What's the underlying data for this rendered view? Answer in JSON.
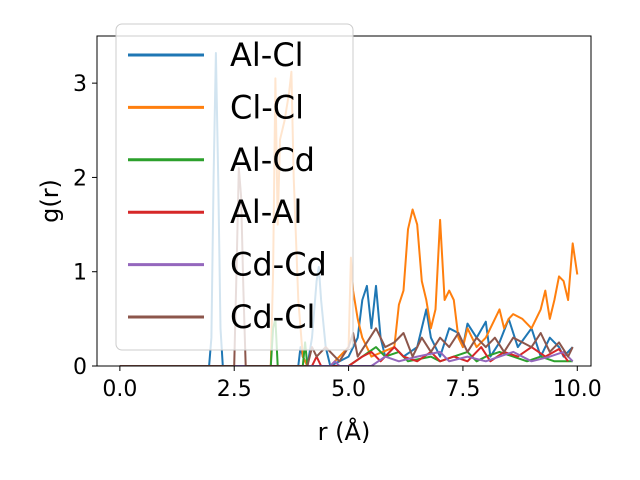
{
  "chart_data": {
    "type": "line",
    "xlabel": "r (Å)",
    "ylabel": "g(r)",
    "xlim": [
      -0.5,
      10.3
    ],
    "ylim": [
      0,
      3.5
    ],
    "xticks": [
      0.0,
      2.5,
      5.0,
      7.5,
      10.0
    ],
    "xtick_labels": [
      "0.0",
      "2.5",
      "5.0",
      "7.5",
      "10.0"
    ],
    "yticks": [
      0,
      1,
      2,
      3
    ],
    "ytick_labels": [
      "0",
      "1",
      "2",
      "3"
    ],
    "grid": false,
    "legend_position": "top-left",
    "series": [
      {
        "name": "Al-Cl",
        "color": "#1f77b4",
        "points": [
          [
            0.0,
            0
          ],
          [
            1.95,
            0
          ],
          [
            2.0,
            0.3
          ],
          [
            2.05,
            2.0
          ],
          [
            2.1,
            3.32
          ],
          [
            2.15,
            2.0
          ],
          [
            2.2,
            0.4
          ],
          [
            2.25,
            0
          ],
          [
            3.9,
            0
          ],
          [
            3.95,
            0.2
          ],
          [
            4.0,
            0.1
          ],
          [
            4.1,
            0
          ],
          [
            4.2,
            0.3
          ],
          [
            4.3,
            0.9
          ],
          [
            4.35,
            1.05
          ],
          [
            4.4,
            0.7
          ],
          [
            4.5,
            0.2
          ],
          [
            4.6,
            0
          ],
          [
            5.0,
            0.1
          ],
          [
            5.2,
            0.3
          ],
          [
            5.3,
            0.7
          ],
          [
            5.4,
            0.85
          ],
          [
            5.5,
            0.4
          ],
          [
            5.6,
            0.85
          ],
          [
            5.7,
            0.3
          ],
          [
            5.8,
            0.1
          ],
          [
            6.0,
            0.2
          ],
          [
            6.2,
            0.1
          ],
          [
            6.5,
            0.2
          ],
          [
            6.7,
            0.6
          ],
          [
            6.8,
            0.3
          ],
          [
            7.0,
            0.1
          ],
          [
            7.2,
            0.4
          ],
          [
            7.4,
            0.35
          ],
          [
            7.5,
            0.2
          ],
          [
            7.6,
            0.45
          ],
          [
            7.8,
            0.3
          ],
          [
            8.0,
            0.47
          ],
          [
            8.1,
            0.1
          ],
          [
            8.3,
            0.25
          ],
          [
            8.5,
            0.5
          ],
          [
            8.7,
            0.2
          ],
          [
            9.0,
            0.4
          ],
          [
            9.2,
            0.1
          ],
          [
            9.4,
            0.3
          ],
          [
            9.6,
            0.2
          ],
          [
            9.7,
            0.1
          ],
          [
            9.9,
            0.2
          ]
        ]
      },
      {
        "name": "Cl-Cl",
        "color": "#ff7f0e",
        "points": [
          [
            0.0,
            0
          ],
          [
            3.3,
            0
          ],
          [
            3.35,
            1.0
          ],
          [
            3.4,
            3.05
          ],
          [
            3.45,
            1.5
          ],
          [
            3.5,
            2.4
          ],
          [
            3.6,
            2.6
          ],
          [
            3.7,
            2.9
          ],
          [
            3.75,
            3.12
          ],
          [
            3.8,
            2.0
          ],
          [
            3.9,
            0.7
          ],
          [
            4.0,
            0.1
          ],
          [
            4.1,
            0
          ],
          [
            4.6,
            0
          ],
          [
            4.8,
            0.1
          ],
          [
            5.0,
            0.2
          ],
          [
            5.05,
            1.15
          ],
          [
            5.1,
            0.8
          ],
          [
            5.2,
            0.5
          ],
          [
            5.3,
            0.3
          ],
          [
            5.5,
            0.1
          ],
          [
            6.0,
            0.2
          ],
          [
            6.1,
            0.65
          ],
          [
            6.2,
            0.8
          ],
          [
            6.3,
            1.45
          ],
          [
            6.4,
            1.66
          ],
          [
            6.5,
            1.5
          ],
          [
            6.6,
            0.9
          ],
          [
            6.7,
            0.7
          ],
          [
            6.8,
            0.4
          ],
          [
            6.9,
            0.6
          ],
          [
            7.0,
            1.55
          ],
          [
            7.1,
            0.7
          ],
          [
            7.2,
            0.8
          ],
          [
            7.3,
            0.7
          ],
          [
            7.4,
            0.3
          ],
          [
            7.5,
            0.2
          ],
          [
            7.6,
            0.4
          ],
          [
            7.8,
            0.2
          ],
          [
            8.0,
            0.3
          ],
          [
            8.2,
            0.5
          ],
          [
            8.3,
            0.6
          ],
          [
            8.4,
            0.4
          ],
          [
            8.5,
            0.5
          ],
          [
            8.6,
            0.55
          ],
          [
            8.8,
            0.5
          ],
          [
            9.0,
            0.4
          ],
          [
            9.2,
            0.6
          ],
          [
            9.3,
            0.8
          ],
          [
            9.4,
            0.5
          ],
          [
            9.5,
            0.7
          ],
          [
            9.6,
            0.95
          ],
          [
            9.7,
            0.9
          ],
          [
            9.8,
            0.7
          ],
          [
            9.9,
            1.3
          ],
          [
            10.0,
            0.97
          ]
        ]
      },
      {
        "name": "Al-Cd",
        "color": "#2ca02c",
        "points": [
          [
            0.0,
            0
          ],
          [
            3.3,
            0
          ],
          [
            3.35,
            0.4
          ],
          [
            3.4,
            0.5
          ],
          [
            3.45,
            0
          ],
          [
            4.0,
            0
          ],
          [
            4.05,
            0.25
          ],
          [
            4.1,
            0
          ],
          [
            5.0,
            0
          ],
          [
            5.3,
            0.1
          ],
          [
            5.6,
            0.2
          ],
          [
            5.8,
            0.1
          ],
          [
            6.1,
            0.15
          ],
          [
            6.3,
            0.05
          ],
          [
            6.8,
            0.1
          ],
          [
            7.0,
            0.05
          ],
          [
            7.3,
            0.1
          ],
          [
            7.6,
            0.15
          ],
          [
            7.8,
            0.05
          ],
          [
            8.0,
            0.1
          ],
          [
            8.3,
            0.15
          ],
          [
            8.6,
            0.1
          ],
          [
            8.9,
            0.05
          ],
          [
            9.2,
            0.1
          ],
          [
            9.5,
            0.05
          ],
          [
            9.9,
            0.05
          ]
        ]
      },
      {
        "name": "Al-Al",
        "color": "#d62728",
        "points": [
          [
            0.0,
            0
          ],
          [
            4.2,
            0
          ],
          [
            4.3,
            0.1
          ],
          [
            4.4,
            0
          ],
          [
            5.0,
            0
          ],
          [
            5.3,
            0.1
          ],
          [
            5.5,
            0.15
          ],
          [
            5.7,
            0.05
          ],
          [
            6.0,
            0.2
          ],
          [
            6.2,
            0.1
          ],
          [
            6.5,
            0.05
          ],
          [
            6.8,
            0.15
          ],
          [
            7.0,
            0.05
          ],
          [
            7.3,
            0.1
          ],
          [
            7.6,
            0.05
          ],
          [
            7.9,
            0.2
          ],
          [
            8.1,
            0.05
          ],
          [
            8.4,
            0.15
          ],
          [
            8.7,
            0.1
          ],
          [
            9.0,
            0.2
          ],
          [
            9.3,
            0.1
          ],
          [
            9.6,
            0.18
          ],
          [
            9.8,
            0.05
          ]
        ]
      },
      {
        "name": "Cd-Cd",
        "color": "#9467bd",
        "points": [
          [
            0.0,
            0
          ],
          [
            4.6,
            0
          ],
          [
            4.7,
            0.05
          ],
          [
            4.8,
            0
          ],
          [
            5.5,
            0
          ],
          [
            5.8,
            0.1
          ],
          [
            6.1,
            0.05
          ],
          [
            6.5,
            0.1
          ],
          [
            7.0,
            0.15
          ],
          [
            7.2,
            0.05
          ],
          [
            7.6,
            0.1
          ],
          [
            8.0,
            0.05
          ],
          [
            8.3,
            0.1
          ],
          [
            8.6,
            0.15
          ],
          [
            9.0,
            0.05
          ],
          [
            9.4,
            0.1
          ],
          [
            9.7,
            0.15
          ],
          [
            9.9,
            0.05
          ]
        ]
      },
      {
        "name": "Cd-Cl",
        "color": "#8c564b",
        "points": [
          [
            0.0,
            0
          ],
          [
            2.5,
            0
          ],
          [
            2.55,
            1.0
          ],
          [
            2.6,
            2.1
          ],
          [
            2.65,
            1.8
          ],
          [
            2.7,
            0.8
          ],
          [
            2.75,
            0
          ],
          [
            4.1,
            0
          ],
          [
            4.2,
            0.2
          ],
          [
            4.3,
            0.1
          ],
          [
            4.5,
            0.2
          ],
          [
            4.6,
            0.15
          ],
          [
            4.8,
            0.05
          ],
          [
            5.0,
            0.2
          ],
          [
            5.1,
            0.35
          ],
          [
            5.2,
            0.1
          ],
          [
            5.4,
            0.25
          ],
          [
            5.6,
            0.4
          ],
          [
            5.8,
            0.2
          ],
          [
            6.0,
            0.25
          ],
          [
            6.2,
            0.35
          ],
          [
            6.4,
            0.1
          ],
          [
            6.6,
            0.3
          ],
          [
            6.8,
            0.15
          ],
          [
            7.0,
            0.3
          ],
          [
            7.2,
            0.2
          ],
          [
            7.4,
            0.35
          ],
          [
            7.6,
            0.15
          ],
          [
            7.8,
            0.3
          ],
          [
            8.0,
            0.2
          ],
          [
            8.2,
            0.3
          ],
          [
            8.4,
            0.15
          ],
          [
            8.6,
            0.3
          ],
          [
            8.8,
            0.25
          ],
          [
            9.0,
            0.2
          ],
          [
            9.2,
            0.35
          ],
          [
            9.4,
            0.15
          ],
          [
            9.6,
            0.25
          ],
          [
            9.8,
            0.1
          ],
          [
            9.9,
            0.2
          ]
        ]
      }
    ]
  }
}
